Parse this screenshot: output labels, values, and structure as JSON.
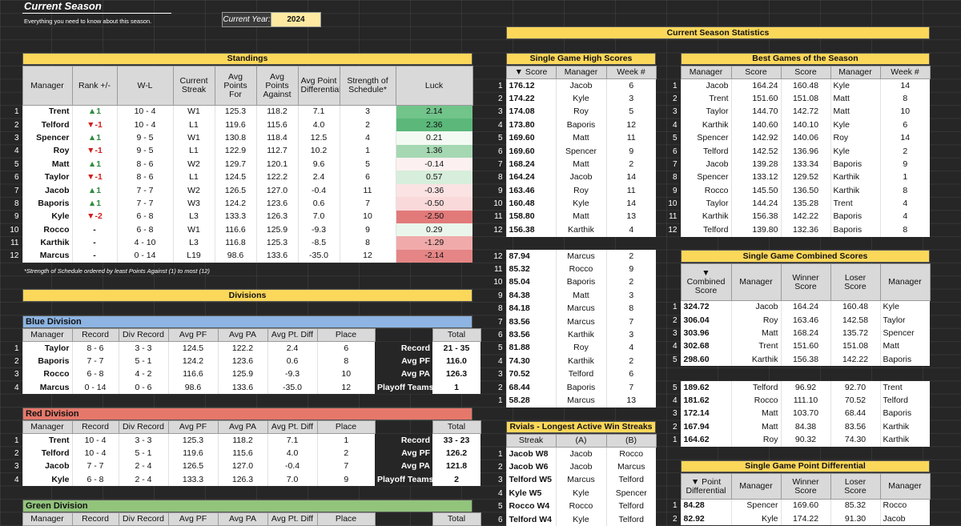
{
  "header": {
    "title": "Current Season",
    "subtitle": "Everything you need to know about this season.",
    "year_label": "Current Year:",
    "year_value": "2024",
    "stats_title": "Current Season Statistics"
  },
  "standings": {
    "title": "Standings",
    "columns": [
      "Manager",
      "Rank +/-",
      "W-L",
      "Current Streak",
      "Avg Points For",
      "Avg Points Against",
      "Avg Point Differential",
      "Strength of Schedule*",
      "Luck"
    ],
    "rows": [
      [
        "Trent",
        "▲1",
        "10 - 4",
        "W1",
        "125.3",
        "118.2",
        "7.1",
        "3",
        "2.14"
      ],
      [
        "Telford",
        "▼-1",
        "10 - 4",
        "L1",
        "119.6",
        "115.6",
        "4.0",
        "2",
        "2.36"
      ],
      [
        "Spencer",
        "▲1",
        "9 - 5",
        "W1",
        "130.8",
        "118.4",
        "12.5",
        "4",
        "0.21"
      ],
      [
        "Roy",
        "▼-1",
        "9 - 5",
        "L1",
        "122.9",
        "112.7",
        "10.2",
        "1",
        "1.36"
      ],
      [
        "Matt",
        "▲1",
        "8 - 6",
        "W2",
        "129.7",
        "120.1",
        "9.6",
        "5",
        "-0.14"
      ],
      [
        "Taylor",
        "▼-1",
        "8 - 6",
        "L1",
        "124.5",
        "122.2",
        "2.4",
        "6",
        "0.57"
      ],
      [
        "Jacob",
        "▲1",
        "7 - 7",
        "W2",
        "126.5",
        "127.0",
        "-0.4",
        "11",
        "-0.36"
      ],
      [
        "Baporis",
        "▲1",
        "7 - 7",
        "W3",
        "124.2",
        "123.6",
        "0.6",
        "7",
        "-0.50"
      ],
      [
        "Kyle",
        "▼-2",
        "6 - 8",
        "L3",
        "133.3",
        "126.3",
        "7.0",
        "10",
        "-2.50"
      ],
      [
        "Rocco",
        "-",
        "6 - 8",
        "W1",
        "116.6",
        "125.9",
        "-9.3",
        "9",
        "0.29"
      ],
      [
        "Karthik",
        "-",
        "4 - 10",
        "L3",
        "116.8",
        "125.3",
        "-8.5",
        "8",
        "-1.29"
      ],
      [
        "Marcus",
        "-",
        "0 - 14",
        "L19",
        "98.6",
        "133.6",
        "-35.0",
        "12",
        "-2.14"
      ]
    ],
    "luck_colors": [
      "#71c48a",
      "#5bb87a",
      "#f3faf4",
      "#a5d8b2",
      "#fdf0f0",
      "#d6eedb",
      "#fbe3e3",
      "#f9d9d9",
      "#e27a7a",
      "#eaf6ec",
      "#f0aaaa",
      "#e58585"
    ],
    "footnote": "*Strength of Schedule ordered by least Points Against (1) to most (12)"
  },
  "divisions": {
    "title": "Divisions",
    "columns": [
      "Manager",
      "Record",
      "Div Record",
      "Avg PF",
      "Avg PA",
      "Avg Pt. Diff",
      "Place",
      "Total"
    ],
    "totals_labels": [
      "Record",
      "Avg PF",
      "Avg PA",
      "Playoff Teams"
    ],
    "blue": {
      "name": "Blue Division",
      "rows": [
        [
          "Taylor",
          "8 - 6",
          "3 - 3",
          "124.5",
          "122.2",
          "2.4",
          "6"
        ],
        [
          "Baporis",
          "7 - 7",
          "5 - 1",
          "124.2",
          "123.6",
          "0.6",
          "8"
        ],
        [
          "Rocco",
          "6 - 8",
          "4 - 2",
          "116.6",
          "125.9",
          "-9.3",
          "10"
        ],
        [
          "Marcus",
          "0 - 14",
          "0 - 6",
          "98.6",
          "133.6",
          "-35.0",
          "12"
        ]
      ],
      "totals": [
        "21 - 35",
        "116.0",
        "126.3",
        "1"
      ]
    },
    "red": {
      "name": "Red Division",
      "rows": [
        [
          "Trent",
          "10 - 4",
          "3 - 3",
          "125.3",
          "118.2",
          "7.1",
          "1"
        ],
        [
          "Telford",
          "10 - 4",
          "5 - 1",
          "119.6",
          "115.6",
          "4.0",
          "2"
        ],
        [
          "Jacob",
          "7 - 7",
          "2 - 4",
          "126.5",
          "127.0",
          "-0.4",
          "7"
        ],
        [
          "Kyle",
          "6 - 8",
          "2 - 4",
          "133.3",
          "126.3",
          "7.0",
          "9"
        ]
      ],
      "totals": [
        "33 - 23",
        "126.2",
        "121.8",
        "2"
      ]
    },
    "green": {
      "name": "Green Division"
    }
  },
  "high_scores": {
    "title": "Single Game High Scores",
    "columns": [
      "▼ Score",
      "Manager",
      "Week #"
    ],
    "rows": [
      [
        "1",
        "176.12",
        "Jacob",
        "6"
      ],
      [
        "2",
        "174.22",
        "Kyle",
        "3"
      ],
      [
        "3",
        "174.08",
        "Roy",
        "5"
      ],
      [
        "4",
        "173.80",
        "Baporis",
        "12"
      ],
      [
        "5",
        "169.60",
        "Matt",
        "11"
      ],
      [
        "6",
        "169.60",
        "Spencer",
        "9"
      ],
      [
        "7",
        "168.24",
        "Matt",
        "2"
      ],
      [
        "8",
        "164.24",
        "Jacob",
        "14"
      ],
      [
        "9",
        "163.46",
        "Roy",
        "11"
      ],
      [
        "10",
        "160.48",
        "Kyle",
        "14"
      ],
      [
        "11",
        "158.80",
        "Matt",
        "13"
      ],
      [
        "12",
        "156.38",
        "Karthik",
        "4"
      ]
    ],
    "low_rows": [
      [
        "12",
        "87.94",
        "Marcus",
        "2"
      ],
      [
        "11",
        "85.32",
        "Rocco",
        "9"
      ],
      [
        "10",
        "85.04",
        "Baporis",
        "2"
      ],
      [
        "9",
        "84.38",
        "Matt",
        "3"
      ],
      [
        "8",
        "84.18",
        "Marcus",
        "8"
      ],
      [
        "7",
        "83.56",
        "Marcus",
        "7"
      ],
      [
        "6",
        "83.56",
        "Karthik",
        "3"
      ],
      [
        "5",
        "81.88",
        "Roy",
        "4"
      ],
      [
        "4",
        "74.30",
        "Karthik",
        "2"
      ],
      [
        "3",
        "70.52",
        "Telford",
        "6"
      ],
      [
        "2",
        "68.44",
        "Baporis",
        "7"
      ],
      [
        "1",
        "58.28",
        "Marcus",
        "13"
      ]
    ]
  },
  "rivals": {
    "title": "Rvials - Longest Active Win Streaks",
    "columns": [
      "Streak",
      "(A)",
      "(B)"
    ],
    "rows": [
      [
        "1",
        "Jacob W8",
        "Jacob",
        "Rocco"
      ],
      [
        "2",
        "Jacob W6",
        "Jacob",
        "Marcus"
      ],
      [
        "3",
        "Telford W5",
        "Marcus",
        "Telford"
      ],
      [
        "4",
        "Kyle W5",
        "Kyle",
        "Spencer"
      ],
      [
        "5",
        "Rocco W4",
        "Rocco",
        "Telford"
      ],
      [
        "6",
        "Telford W4",
        "Kyle",
        "Telford"
      ]
    ]
  },
  "best_games": {
    "title": "Best Games of the Season",
    "columns": [
      "Manager",
      "Score",
      "Score",
      "Manager",
      "Week #"
    ],
    "rows": [
      [
        "1",
        "Jacob",
        "164.24",
        "160.48",
        "Kyle",
        "14"
      ],
      [
        "2",
        "Trent",
        "151.60",
        "151.08",
        "Matt",
        "8"
      ],
      [
        "3",
        "Taylor",
        "144.70",
        "142.72",
        "Matt",
        "10"
      ],
      [
        "4",
        "Karthik",
        "140.60",
        "140.10",
        "Kyle",
        "6"
      ],
      [
        "5",
        "Spencer",
        "142.92",
        "140.06",
        "Roy",
        "14"
      ],
      [
        "6",
        "Telford",
        "142.52",
        "136.96",
        "Kyle",
        "2"
      ],
      [
        "7",
        "Jacob",
        "139.28",
        "133.34",
        "Baporis",
        "9"
      ],
      [
        "8",
        "Spencer",
        "133.12",
        "129.52",
        "Karthik",
        "1"
      ],
      [
        "9",
        "Rocco",
        "145.50",
        "136.50",
        "Karthik",
        "8"
      ],
      [
        "10",
        "Taylor",
        "144.24",
        "135.28",
        "Trent",
        "4"
      ],
      [
        "11",
        "Karthik",
        "156.38",
        "142.22",
        "Baporis",
        "4"
      ],
      [
        "12",
        "Telford",
        "139.80",
        "132.36",
        "Baporis",
        "8"
      ]
    ]
  },
  "combined": {
    "title": "Single Game Combined Scores",
    "columns": [
      "▼ Combined Score",
      "Manager",
      "Winner Score",
      "Loser Score",
      "Manager"
    ],
    "rows": [
      [
        "1",
        "324.72",
        "Jacob",
        "164.24",
        "160.48",
        "Kyle"
      ],
      [
        "2",
        "306.04",
        "Roy",
        "163.46",
        "142.58",
        "Taylor"
      ],
      [
        "3",
        "303.96",
        "Matt",
        "168.24",
        "135.72",
        "Spencer"
      ],
      [
        "4",
        "302.68",
        "Trent",
        "151.60",
        "151.08",
        "Matt"
      ],
      [
        "5",
        "298.60",
        "Karthik",
        "156.38",
        "142.22",
        "Baporis"
      ]
    ],
    "low_rows": [
      [
        "5",
        "189.62",
        "Telford",
        "96.92",
        "92.70",
        "Trent"
      ],
      [
        "4",
        "181.62",
        "Rocco",
        "111.10",
        "70.52",
        "Telford"
      ],
      [
        "3",
        "172.14",
        "Matt",
        "103.70",
        "68.44",
        "Baporis"
      ],
      [
        "2",
        "167.94",
        "Matt",
        "84.38",
        "83.56",
        "Karthik"
      ],
      [
        "1",
        "164.62",
        "Roy",
        "90.32",
        "74.30",
        "Karthik"
      ]
    ]
  },
  "point_diff": {
    "title": "Single Game Point Differential",
    "columns": [
      "▼ Point Differential",
      "Manager",
      "Winner Score",
      "Loser Score",
      "Manager"
    ],
    "rows": [
      [
        "1",
        "84.28",
        "Spencer",
        "169.60",
        "85.32",
        "Rocco"
      ],
      [
        "2",
        "82.92",
        "Kyle",
        "174.22",
        "91.30",
        "Jacob"
      ]
    ]
  }
}
